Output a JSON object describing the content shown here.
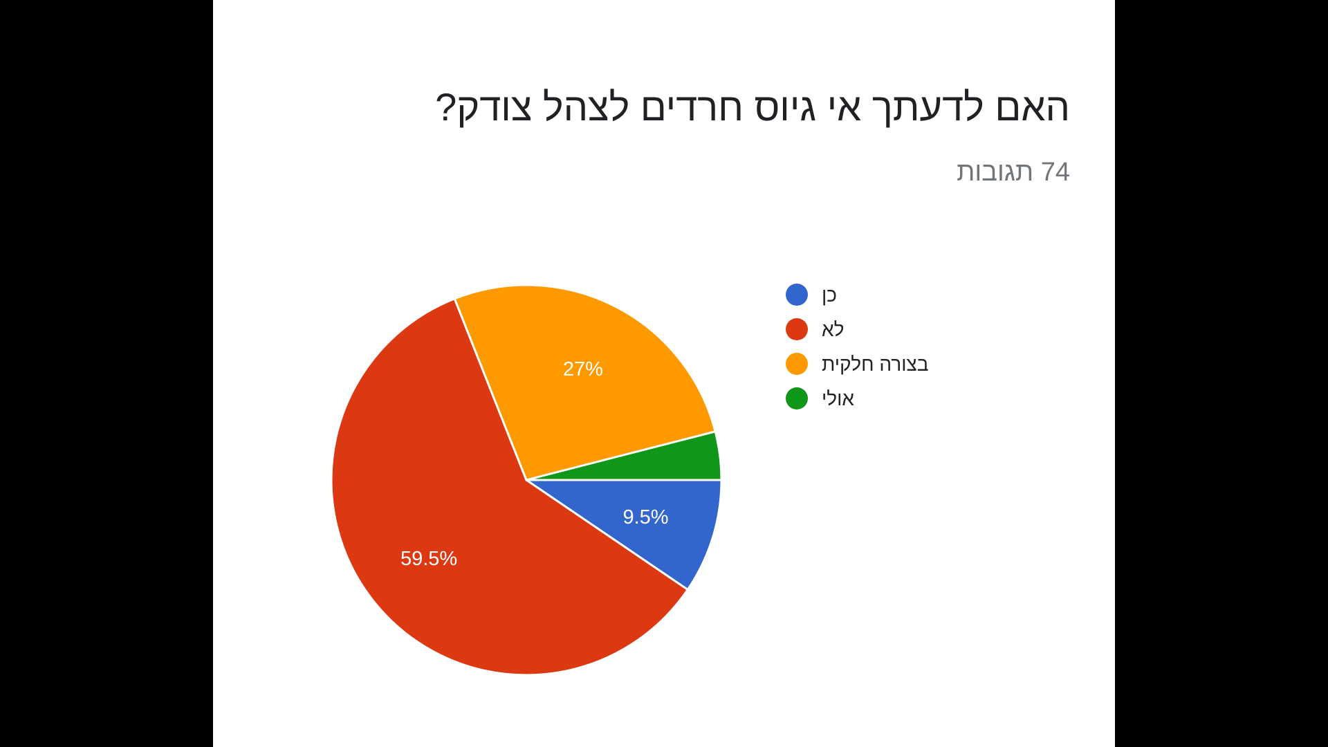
{
  "page": {
    "title": "האם לדעתך אי גיוס חרדים לצהל צודק?",
    "subtitle": "74 תגובות"
  },
  "chart_data": {
    "type": "pie",
    "title": "האם לדעתך אי גיוס חרדים לצהל צודק?",
    "subtitle": "74 תגובות",
    "legend_position": "right",
    "slices": [
      {
        "label": "כן",
        "value": 9.5,
        "display": "9.5%",
        "color": "#3366cc"
      },
      {
        "label": "לא",
        "value": 59.5,
        "display": "59.5%",
        "color": "#dc3912"
      },
      {
        "label": "בצורה חלקית",
        "value": 27,
        "display": "27%",
        "color": "#ff9900"
      },
      {
        "label": "אולי",
        "value": 4,
        "display": "",
        "color": "#109618"
      }
    ]
  }
}
